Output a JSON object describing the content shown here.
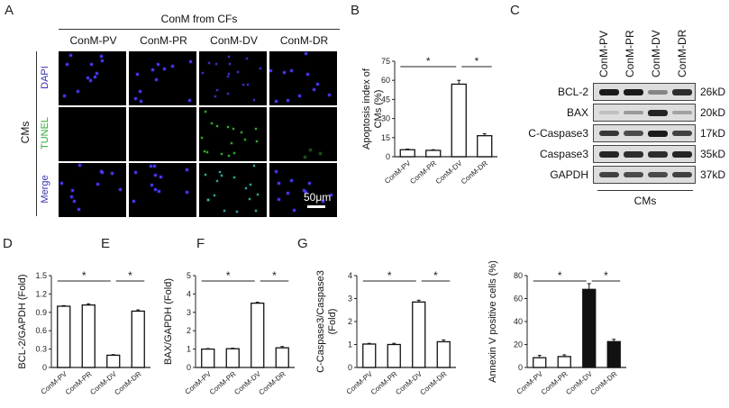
{
  "panels": {
    "A": "A",
    "B": "B",
    "C": "C",
    "D": "D",
    "E": "E",
    "F": "F",
    "G": "G"
  },
  "panelA": {
    "header": "ConM from CFs",
    "columns": [
      "ConM-PV",
      "ConM-PR",
      "ConM-DV",
      "ConM-DR"
    ],
    "side_label": "CMs",
    "rows": [
      {
        "label": "DAPI",
        "color": "#3a2fb0"
      },
      {
        "label": "TUNEL",
        "color": "#2eaa3a"
      },
      {
        "label": "Merge",
        "color": "#3a2fb0"
      }
    ],
    "scale_bar": "50μm"
  },
  "panelC": {
    "lanes": [
      "ConM-PV",
      "ConM-PR",
      "ConM-DV",
      "ConM-DR"
    ],
    "blots": [
      {
        "name": "BCL-2",
        "kd": "26kD",
        "intensity": [
          1.0,
          1.0,
          0.45,
          0.9
        ]
      },
      {
        "name": "BAX",
        "kd": "20kD",
        "intensity": [
          0.15,
          0.35,
          0.95,
          0.3
        ]
      },
      {
        "name": "C-Caspase3",
        "kd": "17kD",
        "intensity": [
          0.85,
          0.75,
          1.0,
          0.8
        ]
      },
      {
        "name": "Caspase3",
        "kd": "35kD",
        "intensity": [
          0.95,
          0.9,
          0.9,
          0.95
        ]
      },
      {
        "name": "GAPDH",
        "kd": "37kD",
        "intensity": [
          0.8,
          0.75,
          0.75,
          0.8
        ]
      }
    ],
    "footer": "CMs"
  },
  "chart_data": [
    {
      "panel": "B",
      "type": "bar",
      "categories": [
        "ConM-PV",
        "ConM-PR",
        "ConM-DV",
        "ConM-DR"
      ],
      "values": [
        5.5,
        5.0,
        57.0,
        16.5
      ],
      "errors": [
        0.5,
        0.5,
        3.0,
        1.5
      ],
      "fill": [
        "white",
        "white",
        "white",
        "white"
      ],
      "ylabel": "Apoptosis index of CMs (%)",
      "yticks": [
        0,
        15,
        30,
        45,
        60,
        75
      ],
      "ylim": [
        0,
        75
      ],
      "significance": [
        {
          "from": 0,
          "to": 2,
          "label": "*"
        },
        {
          "from": 2,
          "to": 3,
          "label": "*"
        }
      ]
    },
    {
      "panel": "D",
      "type": "bar",
      "categories": [
        "ConM-PV",
        "ConM-PR",
        "ConM-DV",
        "ConM-DR"
      ],
      "values": [
        1.0,
        1.02,
        0.2,
        0.92
      ],
      "errors": [
        0.01,
        0.02,
        0.01,
        0.02
      ],
      "fill": [
        "white",
        "white",
        "white",
        "white"
      ],
      "ylabel": "BCL-2/GAPDH (Fold)",
      "yticks": [
        0,
        0.3,
        0.6,
        0.9,
        1.2,
        1.5
      ],
      "ylim": [
        0,
        1.5
      ],
      "significance": [
        {
          "from": 0,
          "to": 2,
          "label": "*"
        },
        {
          "from": 2,
          "to": 3,
          "label": "*"
        }
      ]
    },
    {
      "panel": "E",
      "type": "bar",
      "categories": [
        "ConM-PV",
        "ConM-PR",
        "ConM-DV",
        "ConM-DR"
      ],
      "values": [
        1.0,
        1.02,
        3.5,
        1.07
      ],
      "errors": [
        0.03,
        0.03,
        0.05,
        0.07
      ],
      "fill": [
        "white",
        "white",
        "white",
        "white"
      ],
      "ylabel": "BAX/GAPDH (Fold)",
      "yticks": [
        0,
        1,
        2,
        3,
        4,
        5
      ],
      "ylim": [
        0,
        5
      ],
      "significance": [
        {
          "from": 0,
          "to": 2,
          "label": "*"
        },
        {
          "from": 2,
          "to": 3,
          "label": "*"
        }
      ]
    },
    {
      "panel": "F",
      "type": "bar",
      "categories": [
        "ConM-PV",
        "ConM-PR",
        "ConM-DV",
        "ConM-DR"
      ],
      "values": [
        1.02,
        1.0,
        2.85,
        1.12
      ],
      "errors": [
        0.03,
        0.05,
        0.08,
        0.08
      ],
      "fill": [
        "white",
        "white",
        "white",
        "white"
      ],
      "ylabel": "C-Caspase3/Caspase3 (Fold)",
      "yticks": [
        0,
        1,
        2,
        3,
        4
      ],
      "ylim": [
        0,
        4
      ],
      "significance": [
        {
          "from": 0,
          "to": 2,
          "label": "*"
        },
        {
          "from": 2,
          "to": 3,
          "label": "*"
        }
      ]
    },
    {
      "panel": "G",
      "type": "bar",
      "categories": [
        "ConM-PV",
        "ConM-PR",
        "ConM-DV",
        "ConM-DR"
      ],
      "values": [
        8.5,
        9.5,
        68.0,
        22.5
      ],
      "errors": [
        2.0,
        1.5,
        5.0,
        2.0
      ],
      "fill": [
        "white",
        "white",
        "black",
        "black"
      ],
      "ylabel": "Annexin V positive cells (%)",
      "yticks": [
        0,
        20,
        40,
        60,
        80
      ],
      "ylim": [
        0,
        80
      ],
      "significance": [
        {
          "from": 0,
          "to": 2,
          "label": "*"
        },
        {
          "from": 2,
          "to": 3,
          "label": "*"
        }
      ]
    }
  ]
}
